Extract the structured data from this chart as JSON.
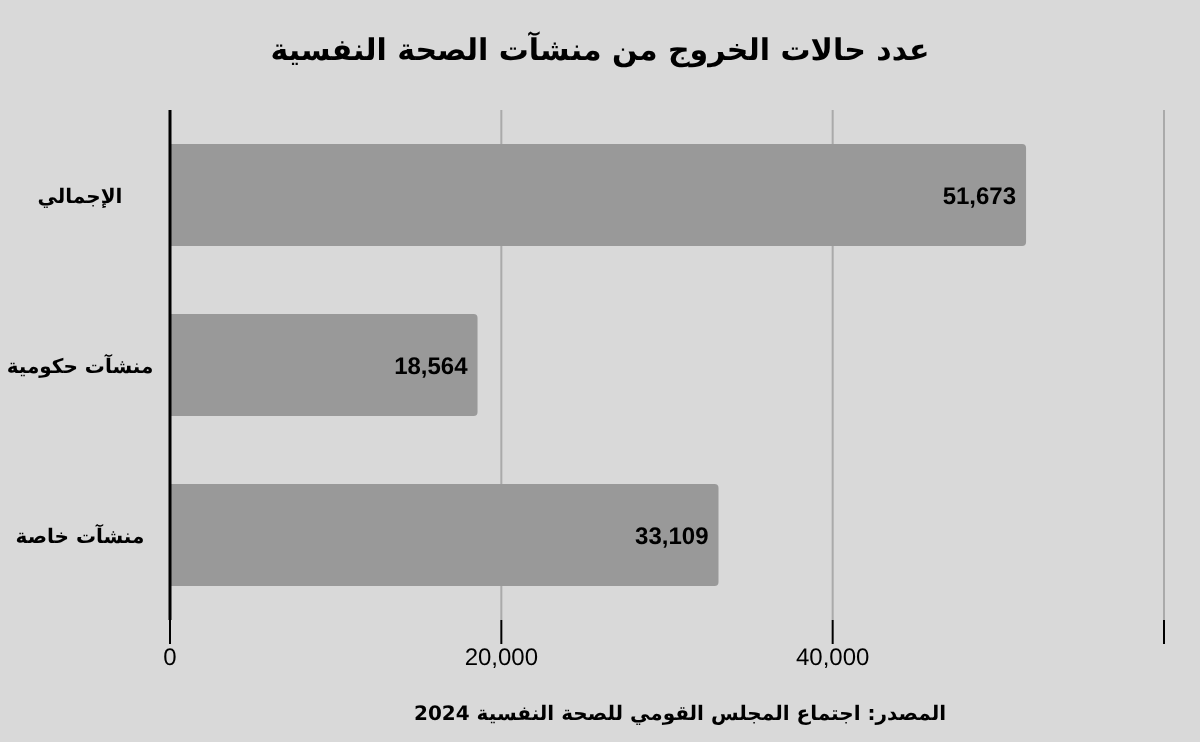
{
  "chart_data": {
    "type": "bar",
    "orientation": "horizontal",
    "title": "عدد حالات الخروج من منشآت الصحة النفسية",
    "categories": [
      "الإجمالي",
      "منشآت حكومية",
      "منشآت خاصة"
    ],
    "values": [
      51673,
      18564,
      33109
    ],
    "color": "#999999",
    "xlim": [
      0,
      60000
    ],
    "xticks": [
      0,
      {
        "value": 20000,
        "label": "20,000"
      },
      {
        "value": 40000,
        "label": "40,000"
      },
      {
        "value": 60000,
        "label": null
      }
    ],
    "grid": "x",
    "value_labels": [
      "51,673",
      "18,564",
      "33,109"
    ],
    "annotations": [
      "المصدر: اجتماع المجلس القومي للصحة النفسية 2024"
    ]
  }
}
